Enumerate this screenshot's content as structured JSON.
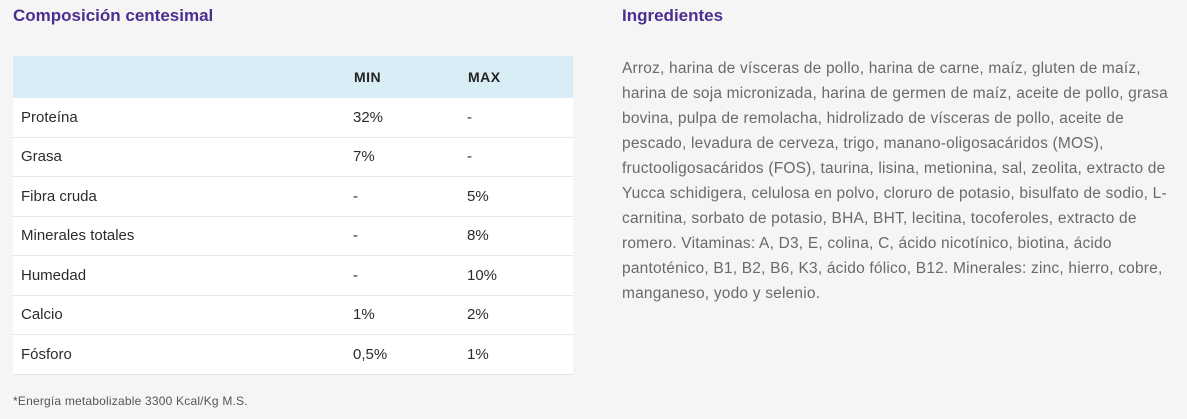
{
  "composition": {
    "title": "Composición centesimal",
    "headers": [
      "",
      "MIN",
      "MAX"
    ],
    "rows": [
      {
        "name": "Proteína",
        "min": "32%",
        "max": "-"
      },
      {
        "name": "Grasa",
        "min": "7%",
        "max": "-"
      },
      {
        "name": "Fibra cruda",
        "min": "-",
        "max": "5%"
      },
      {
        "name": "Minerales totales",
        "min": "-",
        "max": "8%"
      },
      {
        "name": "Humedad",
        "min": "-",
        "max": "10%"
      },
      {
        "name": "Calcio",
        "min": "1%",
        "max": "2%"
      },
      {
        "name": "Fósforo",
        "min": "0,5%",
        "max": "1%"
      }
    ],
    "footnote": "*Energía metabolizable 3300 Kcal/Kg M.S."
  },
  "ingredients": {
    "title": "Ingredientes",
    "text": "Arroz, harina de vísceras de pollo, harina de carne, maíz, gluten de maíz, harina de soja micronizada, harina de germen de maíz, aceite de pollo, grasa bovina, pulpa de remolacha, hidrolizado de vísceras de pollo, aceite de pescado, levadura de cerveza, trigo, manano-oligosacáridos (MOS), fructooligosacáridos (FOS), taurina, lisina, metionina, sal,  zeolita, extracto de Yucca schidigera, celulosa en polvo, cloruro de potasio, bisulfato de sodio, L-carnitina, sorbato de potasio, BHA, BHT, lecitina, tocoferoles, extracto de romero. Vitaminas: A, D3, E, colina, C, ácido nicotínico, biotina, ácido pantoténico, B1, B2, B6, K3, ácido fólico, B12. Minerales: zinc, hierro, cobre, manganeso, yodo y selenio."
  }
}
